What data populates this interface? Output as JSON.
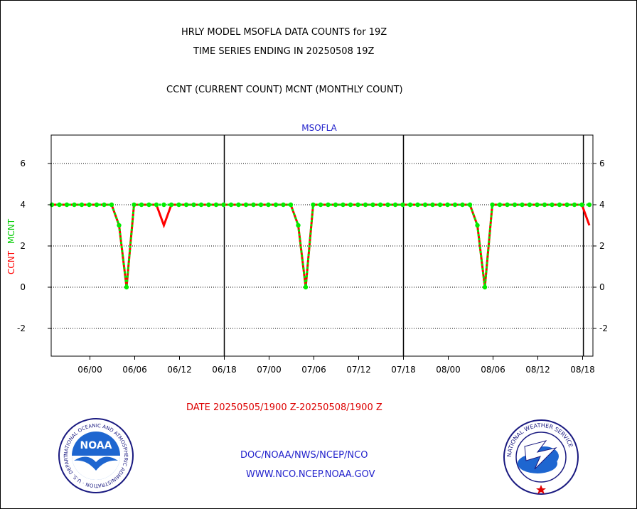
{
  "header": {
    "title_line1": "HRLY MODEL MSOFLA DATA COUNTS for 19Z",
    "title_line2": "TIME SERIES ENDING IN 20250508 19Z",
    "subtitle": "CCNT (CURRENT COUNT) MCNT (MONTHLY COUNT)"
  },
  "footer": {
    "date_range": "DATE 20250505/1900 Z-20250508/1900 Z",
    "org_path": "DOC/NOAA/NWS/NCEP/NCO",
    "website": "WWW.NCO.NCEP.NOAA.GOV",
    "noaa_logo_text": "NOAA",
    "noaa_ring_text": "NATIONAL OCEANIC AND ATMOSPHERIC ADMINISTRATION · U.S. DEPARTMENT OF COMMERCE",
    "nws_ring_text": "NATIONAL WEATHER SERVICE"
  },
  "colors": {
    "ccnt": "#ff0000",
    "mcnt": "#00ee00",
    "text_blue": "#2222cc",
    "text_red": "#dd0000"
  },
  "chart_data": {
    "type": "line",
    "title": "MSOFLA",
    "ylabel_ccnt": "CCNT",
    "ylabel_mcnt": "MCNT",
    "ylim": [
      -3.4,
      7.3
    ],
    "yticks": [
      -2,
      0,
      2,
      4,
      6
    ],
    "x_range_hours": [
      0,
      72
    ],
    "xtick_labels": [
      "06/00",
      "06/06",
      "06/12",
      "06/18",
      "07/00",
      "07/06",
      "07/12",
      "07/18",
      "08/00",
      "08/06",
      "08/12",
      "08/18"
    ],
    "grid": true,
    "series": [
      {
        "name": "CCNT",
        "color": "#ff0000",
        "x": [
          0,
          1,
          2,
          3,
          4,
          5,
          6,
          7,
          8,
          9,
          10,
          11,
          12,
          13,
          14,
          15,
          16,
          17,
          18,
          19,
          20,
          21,
          22,
          23,
          24,
          25,
          26,
          27,
          28,
          29,
          30,
          31,
          32,
          33,
          34,
          35,
          36,
          37,
          38,
          39,
          40,
          41,
          42,
          43,
          44,
          45,
          46,
          47,
          48,
          49,
          50,
          51,
          52,
          53,
          54,
          55,
          56,
          57,
          58,
          59,
          60,
          61,
          62,
          63,
          64,
          65,
          66,
          67,
          68,
          69,
          70,
          71,
          72
        ],
        "values": [
          4,
          4,
          4,
          4,
          4,
          4,
          4,
          4,
          4,
          3,
          0,
          4,
          4,
          4,
          4,
          3,
          4,
          4,
          4,
          4,
          4,
          4,
          4,
          4,
          4,
          4,
          4,
          4,
          4,
          4,
          4,
          4,
          4,
          3,
          0,
          4,
          4,
          4,
          4,
          4,
          4,
          4,
          4,
          4,
          4,
          4,
          4,
          4,
          4,
          4,
          4,
          4,
          4,
          4,
          4,
          4,
          4,
          3,
          0,
          4,
          4,
          4,
          4,
          4,
          4,
          4,
          4,
          4,
          4,
          4,
          4,
          4,
          3
        ]
      },
      {
        "name": "MCNT",
        "color": "#00ee00",
        "x": [
          0,
          1,
          2,
          3,
          4,
          5,
          6,
          7,
          8,
          9,
          10,
          11,
          12,
          13,
          14,
          15,
          16,
          17,
          18,
          19,
          20,
          21,
          22,
          23,
          24,
          25,
          26,
          27,
          28,
          29,
          30,
          31,
          32,
          33,
          34,
          35,
          36,
          37,
          38,
          39,
          40,
          41,
          42,
          43,
          44,
          45,
          46,
          47,
          48,
          49,
          50,
          51,
          52,
          53,
          54,
          55,
          56,
          57,
          58,
          59,
          60,
          61,
          62,
          63,
          64,
          65,
          66,
          67,
          68,
          69,
          70,
          71,
          72
        ],
        "values": [
          4,
          4,
          4,
          4,
          4,
          4,
          4,
          4,
          4,
          3,
          0,
          4,
          4,
          4,
          4,
          4,
          4,
          4,
          4,
          4,
          4,
          4,
          4,
          4,
          4,
          4,
          4,
          4,
          4,
          4,
          4,
          4,
          4,
          3,
          0,
          4,
          4,
          4,
          4,
          4,
          4,
          4,
          4,
          4,
          4,
          4,
          4,
          4,
          4,
          4,
          4,
          4,
          4,
          4,
          4,
          4,
          4,
          3,
          0,
          4,
          4,
          4,
          4,
          4,
          4,
          4,
          4,
          4,
          4,
          4,
          4,
          4,
          4
        ]
      }
    ]
  }
}
